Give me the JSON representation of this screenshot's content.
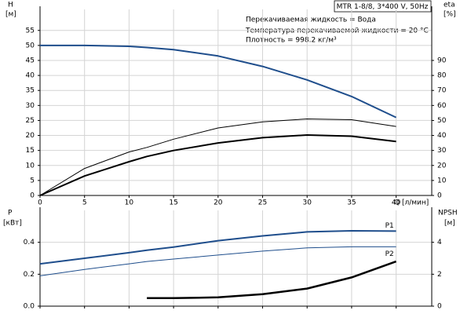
{
  "chart_data": [
    {
      "type": "line",
      "title": "MTR 1-8/8, 3*400 V, 50Hz",
      "annotations": [
        "Перекачиваемая жидкость = Вода",
        "Температура перекачиваемой жидкости = 20 °C",
        "Плотность = 998.2 кг/м³"
      ],
      "y_label": "H",
      "y_unit": "[м]",
      "y2_label": "eta",
      "y2_unit": "[%]",
      "x_label": "Q [л/мин]",
      "x": [
        0,
        5,
        10,
        12,
        15,
        20,
        25,
        30,
        35,
        40
      ],
      "xlim": [
        0,
        44
      ],
      "xticks": [
        0,
        5,
        10,
        15,
        20,
        25,
        30,
        35,
        40
      ],
      "ylim": [
        0,
        62
      ],
      "yticks": [
        0,
        5,
        10,
        15,
        20,
        25,
        30,
        35,
        40,
        45,
        50,
        55
      ],
      "y2lim": [
        0,
        124
      ],
      "y2ticks": [
        0,
        10,
        20,
        30,
        40,
        50,
        60,
        70,
        80,
        90
      ],
      "grid": true,
      "series": [
        {
          "color": "#1f4e8c",
          "width": 2,
          "values": [
            50,
            50,
            49.7,
            49.3,
            48.6,
            46.5,
            43,
            38.5,
            33,
            26
          ]
        },
        {
          "color": "#000000",
          "width": 1,
          "axis": "y2",
          "values": [
            0,
            18,
            29,
            32,
            37.5,
            45,
            49,
            51,
            50.5,
            46
          ]
        },
        {
          "color": "#000000",
          "width": 2,
          "axis": "y2",
          "values": [
            0,
            13,
            22.5,
            26,
            30,
            35,
            38.5,
            40.3,
            39.5,
            36
          ]
        }
      ]
    },
    {
      "type": "line",
      "y_label": "P",
      "y_unit": "[кВт]",
      "y2_label": "NPSH",
      "y2_unit": "[м]",
      "x": [
        0,
        5,
        10,
        12,
        15,
        20,
        25,
        30,
        35,
        40
      ],
      "xlim": [
        0,
        44
      ],
      "xticks": [
        0,
        5,
        10,
        15,
        20,
        25,
        30,
        35,
        40
      ],
      "xtick_labels": false,
      "ylim": [
        0,
        0.6
      ],
      "yticks": [
        {
          "value": 0,
          "label": "0.0"
        },
        0.2,
        0.4
      ],
      "y2lim": [
        0,
        6
      ],
      "y2ticks": [
        0,
        2,
        4
      ],
      "grid": true,
      "series": [
        {
          "name": "P1",
          "color": "#1f4e8c",
          "width": 2,
          "values": [
            0.265,
            0.3,
            0.335,
            0.35,
            0.37,
            0.41,
            0.44,
            0.465,
            0.472,
            0.47
          ]
        },
        {
          "name": "P2",
          "color": "#1f4e8c",
          "width": 1,
          "values": [
            0.19,
            0.23,
            0.265,
            0.28,
            0.295,
            0.32,
            0.345,
            0.365,
            0.372,
            0.372
          ]
        },
        {
          "color": "#000000",
          "width": 2.5,
          "axis": "y2",
          "values": [
            null,
            null,
            null,
            0.5,
            0.5,
            0.55,
            0.75,
            1.1,
            1.8,
            2.8
          ]
        }
      ]
    }
  ]
}
